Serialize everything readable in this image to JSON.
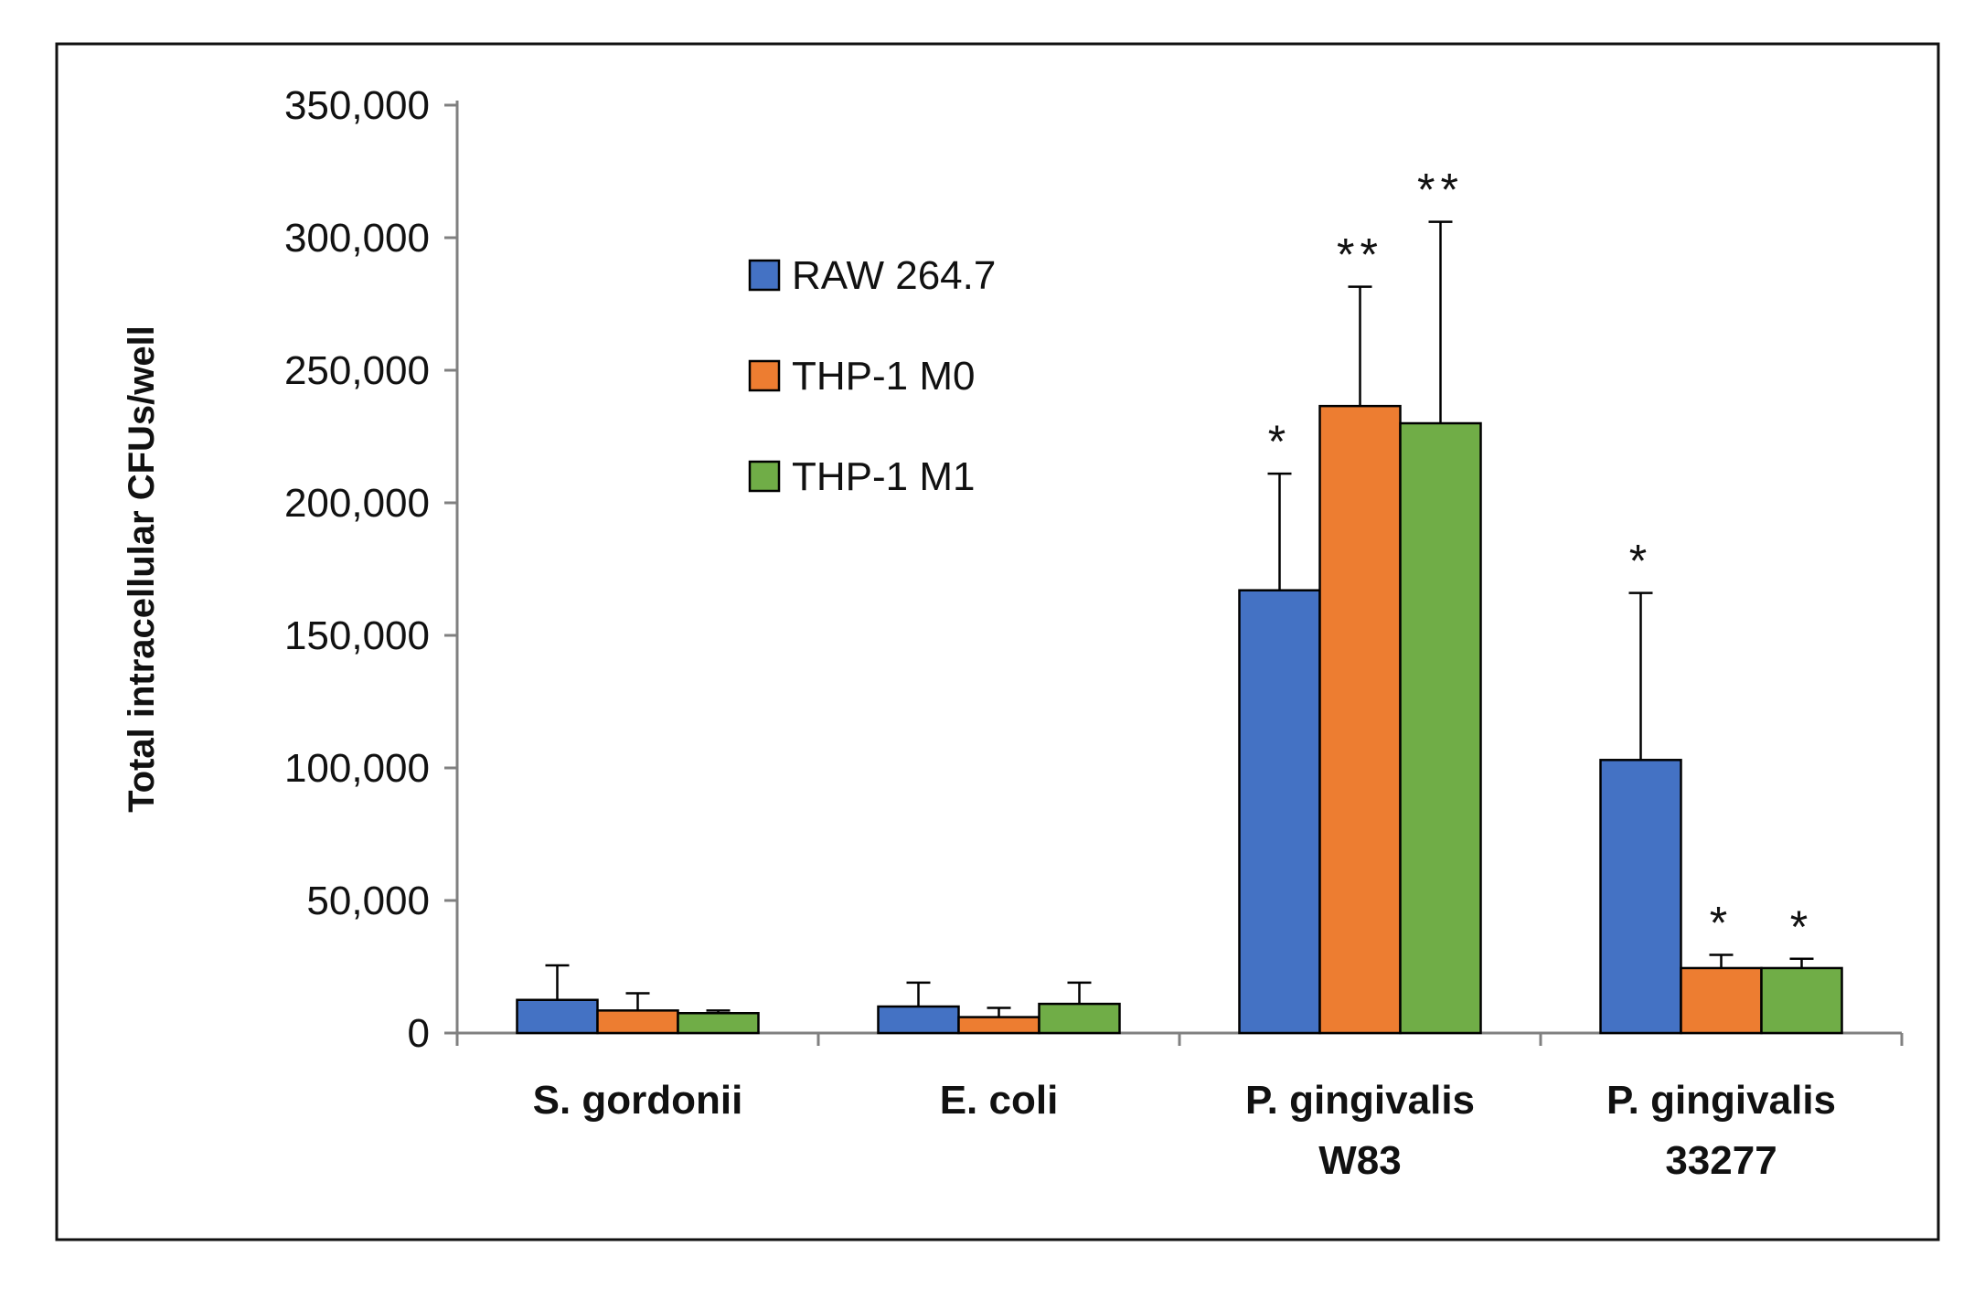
{
  "chart_data": {
    "type": "bar",
    "title": "",
    "xlabel": "",
    "ylabel": "Total intracellular CFUs/well",
    "ylim": [
      0,
      350000
    ],
    "yticks": [
      0,
      50000,
      100000,
      150000,
      200000,
      250000,
      300000,
      350000
    ],
    "ytick_labels": [
      "0",
      "50,000",
      "100,000",
      "150,000",
      "200,000",
      "250,000",
      "300,000",
      "350,000"
    ],
    "categories": [
      [
        "S. gordonii"
      ],
      [
        "E. coli"
      ],
      [
        "P. gingivalis",
        "W83"
      ],
      [
        "P. gingivalis",
        "33277"
      ]
    ],
    "series": [
      {
        "name": "RAW 264.7",
        "color": "#4472C4",
        "values": [
          12500,
          10000,
          167000,
          103000
        ],
        "errors": [
          13000,
          9000,
          44000,
          63000
        ],
        "significance": [
          "",
          "",
          "*",
          "*"
        ]
      },
      {
        "name": "THP-1 M0",
        "color": "#ED7D31",
        "values": [
          8500,
          6000,
          236500,
          24500
        ],
        "errors": [
          6500,
          3500,
          45000,
          5000
        ],
        "significance": [
          "",
          "",
          "**",
          "*"
        ]
      },
      {
        "name": "THP-1 M1",
        "color": "#70AD47",
        "values": [
          7500,
          11000,
          230000,
          24500
        ],
        "errors": [
          1000,
          8000,
          76000,
          3500
        ],
        "significance": [
          "",
          "",
          "**",
          "*"
        ]
      }
    ],
    "legend": "upper-left-inside",
    "grid": false,
    "frame_border": true
  }
}
